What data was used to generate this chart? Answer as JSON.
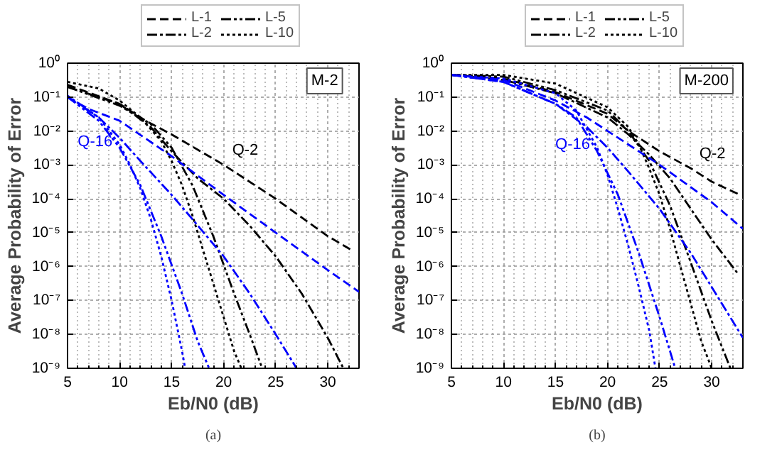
{
  "chart_data": [
    {
      "type": "line",
      "xlabel": "Eb/N0 (dB)",
      "ylabel": "Average Probability of Error",
      "log": "y",
      "grid": true,
      "legend": "top",
      "xlim": [
        5,
        33
      ],
      "ylim": [
        1e-09,
        1
      ],
      "xticks": [
        5,
        10,
        15,
        20,
        25,
        30
      ],
      "yticks": [
        {
          "value": 1e-09,
          "label": "10⁻⁹"
        },
        {
          "value": 1e-08,
          "label": "10⁻⁸"
        },
        {
          "value": 1e-07,
          "label": "10⁻⁷"
        },
        {
          "value": 1e-06,
          "label": "10⁻⁶"
        },
        {
          "value": 1e-05,
          "label": "10⁻⁵"
        },
        {
          "value": 0.0001,
          "label": "10⁻⁴"
        },
        {
          "value": 0.001,
          "label": "10⁻³"
        },
        {
          "value": 0.01,
          "label": "10⁻²"
        },
        {
          "value": 0.1,
          "label": "10⁻¹"
        },
        {
          "value": 1,
          "label": "10⁰"
        }
      ],
      "annotations": [
        {
          "text": "M-2",
          "x": 29.7,
          "y": 0.3
        },
        {
          "text": "Q-16",
          "x": 10,
          "y": 0.004
        },
        {
          "text": "Q-2",
          "x": 20,
          "y": 0.001
        },
        "(a)"
      ],
      "series": [
        {
          "name": "L-1",
          "color": "#000000",
          "line_style": "dashed",
          "x": [
            5,
            10,
            12.5,
            15,
            20,
            25,
            30,
            32.5
          ],
          "values": [
            0.23,
            0.063,
            0.02,
            0.0079,
            0.001,
            0.0001,
            7.9e-06,
            2.8e-06
          ]
        },
        {
          "name": "L-2",
          "color": "#000000",
          "line_style": "dashdot",
          "x": [
            5,
            10,
            13,
            15,
            17.5,
            20,
            22.5,
            25,
            27.5,
            30,
            31.5
          ],
          "values": [
            0.2,
            0.063,
            0.013,
            0.0025,
            0.0004,
            0.0001,
            1.6e-05,
            2e-06,
            1.6e-07,
            7.9e-09,
            1e-09
          ]
        },
        {
          "name": "L-5",
          "color": "#000000",
          "line_style": "dashdotdot",
          "x": [
            5,
            10,
            13,
            15,
            17,
            19,
            21,
            22.5,
            23.7
          ],
          "values": [
            0.2,
            0.056,
            0.016,
            0.0032,
            0.00025,
            7.9e-06,
            1.6e-07,
            1e-08,
            1e-09
          ]
        },
        {
          "name": "L-10",
          "color": "#000000",
          "line_style": "dotted",
          "x": [
            5,
            8,
            10,
            12,
            14,
            15,
            16,
            17,
            18,
            19,
            20,
            21,
            21.7
          ],
          "values": [
            0.28,
            0.18,
            0.079,
            0.025,
            0.005,
            0.0013,
            0.00025,
            3.2e-05,
            3.2e-06,
            3.2e-07,
            3.2e-08,
            3.2e-09,
            1e-09
          ]
        },
        {
          "color": "#0000ff",
          "line_style": "dashed",
          "x": [
            5,
            7,
            10,
            15,
            20,
            25,
            30,
            33
          ],
          "values": [
            0.1,
            0.045,
            0.02,
            0.0018,
            0.00013,
            1e-05,
            7.9e-07,
            1.8e-07
          ]
        },
        {
          "color": "#0000ff",
          "line_style": "dashdot",
          "x": [
            5,
            8,
            10,
            12,
            15,
            17,
            20,
            22.5,
            25,
            27
          ],
          "values": [
            0.1,
            0.025,
            0.0063,
            0.0013,
            0.00013,
            2.5e-05,
            2e-06,
            1.6e-07,
            1e-08,
            1e-09
          ]
        },
        {
          "color": "#0000ff",
          "line_style": "dashdotdot",
          "x": [
            5,
            8,
            10,
            12,
            14,
            16,
            17.5,
            18.6
          ],
          "values": [
            0.1,
            0.02,
            0.0032,
            0.00025,
            7.9e-06,
            1.6e-07,
            6.3e-09,
            1e-09
          ]
        },
        {
          "color": "#0000ff",
          "line_style": "dotted",
          "x": [
            5,
            8,
            10,
            11,
            12,
            13,
            14,
            15,
            16,
            16.3
          ],
          "values": [
            0.11,
            0.025,
            0.004,
            0.001,
            0.0002,
            2.5e-05,
            2e-06,
            1e-07,
            3.2e-09,
            1e-09
          ]
        }
      ]
    },
    {
      "type": "line",
      "xlabel": "Eb/N0 (dB)",
      "ylabel": "Average Probability of Error",
      "log": "y",
      "grid": true,
      "legend": "top",
      "xlim": [
        5,
        33
      ],
      "ylim": [
        1e-09,
        1
      ],
      "xticks": [
        5,
        10,
        15,
        20,
        25,
        30
      ],
      "yticks": [
        {
          "value": 1e-09,
          "label": "10⁻⁹"
        },
        {
          "value": 1e-08,
          "label": "10⁻⁸"
        },
        {
          "value": 1e-07,
          "label": "10⁻⁷"
        },
        {
          "value": 1e-06,
          "label": "10⁻⁶"
        },
        {
          "value": 1e-05,
          "label": "10⁻⁵"
        },
        {
          "value": 0.0001,
          "label": "10⁻⁴"
        },
        {
          "value": 0.001,
          "label": "10⁻³"
        },
        {
          "value": 0.01,
          "label": "10⁻²"
        },
        {
          "value": 0.1,
          "label": "10⁻¹"
        },
        {
          "value": 1,
          "label": "10⁰"
        }
      ],
      "annotations": [
        {
          "text": "M-200",
          "x": 29.5,
          "y": 0.3
        },
        {
          "text": "Q-16",
          "x": 19,
          "y": 0.0032
        },
        {
          "text": "Q-2",
          "x": 28,
          "y": 0.00079
        },
        "(b)"
      ],
      "series": [
        {
          "name": "L-1",
          "color": "#000000",
          "line_style": "dashed",
          "x": [
            5,
            10,
            15,
            20,
            22,
            25,
            28,
            30,
            32.5
          ],
          "values": [
            0.45,
            0.35,
            0.14,
            0.032,
            0.01,
            0.0025,
            0.00079,
            0.00032,
            0.00014
          ]
        },
        {
          "name": "L-2",
          "color": "#000000",
          "line_style": "dashdot",
          "x": [
            5,
            10,
            15,
            20,
            22,
            24,
            26,
            28,
            30,
            32.5
          ],
          "values": [
            0.45,
            0.32,
            0.13,
            0.025,
            0.0079,
            0.002,
            0.0004,
            5e-05,
            6.3e-06,
            6.3e-07
          ]
        },
        {
          "name": "L-5",
          "color": "#000000",
          "line_style": "dashdotdot",
          "x": [
            5,
            10,
            15,
            20,
            22,
            24,
            26,
            28,
            30,
            31.8
          ],
          "values": [
            0.45,
            0.4,
            0.16,
            0.04,
            0.01,
            0.0013,
            6.3e-05,
            1.3e-06,
            2.5e-08,
            1e-09
          ]
        },
        {
          "name": "L-10",
          "color": "#000000",
          "line_style": "dotted",
          "x": [
            5,
            10,
            15,
            20,
            22,
            23,
            24,
            25,
            26,
            27,
            28,
            29,
            30
          ],
          "values": [
            0.45,
            0.45,
            0.25,
            0.05,
            0.013,
            0.004,
            0.00079,
            0.00013,
            1.3e-05,
            1e-06,
            7.9e-08,
            6.3e-09,
            1e-09
          ]
        },
        {
          "color": "#0000ff",
          "line_style": "dashed",
          "x": [
            5,
            10,
            15,
            18,
            20,
            25,
            30,
            33
          ],
          "values": [
            0.45,
            0.32,
            0.079,
            0.025,
            0.01,
            0.001,
            7.9e-05,
            1.3e-05
          ]
        },
        {
          "color": "#0000ff",
          "line_style": "dashdot",
          "x": [
            5,
            10,
            15,
            18,
            20,
            22,
            25,
            28,
            30,
            33
          ],
          "values": [
            0.45,
            0.28,
            0.063,
            0.013,
            0.0032,
            0.00063,
            5e-05,
            2.5e-06,
            2.5e-07,
            7.9e-09
          ]
        },
        {
          "color": "#0000ff",
          "line_style": "dashdotdot",
          "x": [
            5,
            10,
            15,
            17,
            19,
            21,
            23,
            25,
            26.5
          ],
          "values": [
            0.45,
            0.28,
            0.063,
            0.025,
            0.0025,
            0.00013,
            2.5e-06,
            3.2e-08,
            1e-09
          ]
        },
        {
          "color": "#0000ff",
          "line_style": "dotted",
          "x": [
            5,
            10,
            15,
            17,
            19,
            20,
            21,
            22,
            23,
            24,
            24.6
          ],
          "values": [
            0.45,
            0.35,
            0.13,
            0.04,
            0.0032,
            0.0005,
            5e-05,
            4e-06,
            2.5e-07,
            1.3e-08,
            1e-09
          ]
        }
      ]
    }
  ]
}
